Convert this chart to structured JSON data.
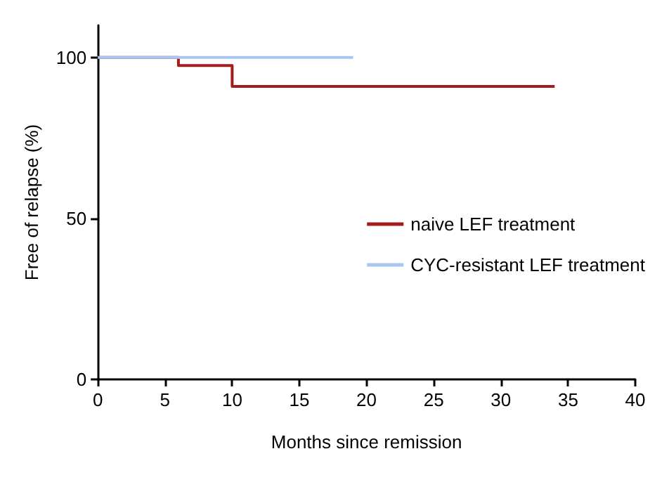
{
  "chart_data": {
    "type": "step",
    "xlabel": "Months since remission",
    "ylabel": "Free of relapse (%)",
    "series": [
      {
        "name": "naive LEF treatment",
        "color": "#a51c1c",
        "x": [
          0,
          6,
          10,
          34
        ],
        "values": [
          100,
          97.5,
          91,
          91
        ]
      },
      {
        "name": "CYC-resistant LEF treatment",
        "color": "#a9c5f2",
        "x": [
          0,
          19
        ],
        "values": [
          100,
          100
        ]
      }
    ],
    "xlim": [
      0,
      40
    ],
    "xticks": [
      0,
      5,
      10,
      15,
      20,
      25,
      30,
      35,
      40
    ],
    "ylim": [
      0,
      110
    ],
    "yticks": [
      0,
      50,
      100
    ],
    "grid": false,
    "legend": "right",
    "marker": "none",
    "line_style": "solid"
  }
}
